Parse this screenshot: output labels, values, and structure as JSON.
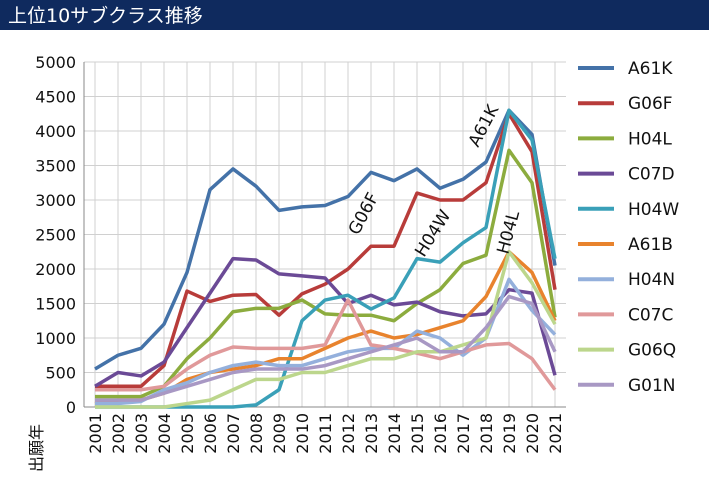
{
  "chart_data": {
    "type": "line",
    "title": "上位10サブクラス推移",
    "x_label": "出願年",
    "categories": [
      "2001",
      "2002",
      "2003",
      "2004",
      "2005",
      "2006",
      "2007",
      "2008",
      "2009",
      "2010",
      "2011",
      "2012",
      "2013",
      "2014",
      "2015",
      "2016",
      "2017",
      "2018",
      "2019",
      "2020",
      "2021"
    ],
    "ylim": [
      0,
      5000
    ],
    "yticks": [
      0,
      500,
      1000,
      1500,
      2000,
      2500,
      3000,
      3500,
      4000,
      4500,
      5000
    ],
    "grid": true,
    "legend": "right",
    "annotations": [
      "A61K",
      "G06F",
      "H04W",
      "H04L"
    ],
    "series": [
      {
        "name": "A61K",
        "color": "#4472a8",
        "values": [
          550,
          750,
          850,
          1200,
          1950,
          3150,
          3450,
          3200,
          2850,
          2900,
          2920,
          3050,
          3400,
          3280,
          3450,
          3170,
          3300,
          3550,
          4300,
          3950,
          2050
        ]
      },
      {
        "name": "G06F",
        "color": "#b83c3a",
        "values": [
          300,
          300,
          300,
          600,
          1680,
          1530,
          1620,
          1630,
          1330,
          1640,
          1780,
          2000,
          2330,
          2330,
          3100,
          3000,
          3000,
          3250,
          4250,
          3700,
          1700
        ]
      },
      {
        "name": "H04L",
        "color": "#8cac3e",
        "values": [
          150,
          150,
          150,
          300,
          700,
          1000,
          1380,
          1430,
          1430,
          1550,
          1350,
          1330,
          1330,
          1250,
          1500,
          1700,
          2080,
          2200,
          3720,
          3250,
          1300
        ]
      },
      {
        "name": "C07D",
        "color": "#6b4a96",
        "values": [
          300,
          500,
          450,
          650,
          1150,
          1650,
          2150,
          2130,
          1930,
          1900,
          1870,
          1500,
          1620,
          1480,
          1520,
          1380,
          1320,
          1350,
          1700,
          1650,
          460
        ]
      },
      {
        "name": "H04W",
        "color": "#3aa0b8",
        "values": [
          0,
          0,
          0,
          0,
          0,
          0,
          0,
          30,
          250,
          1250,
          1550,
          1620,
          1420,
          1580,
          2150,
          2100,
          2380,
          2600,
          4300,
          3870,
          2150
        ]
      },
      {
        "name": "A61B",
        "color": "#e8832d",
        "values": [
          50,
          100,
          100,
          200,
          400,
          500,
          550,
          600,
          700,
          700,
          850,
          1000,
          1100,
          1000,
          1050,
          1150,
          1250,
          1600,
          2250,
          1950,
          1250
        ]
      },
      {
        "name": "H04N",
        "color": "#94b0dc",
        "values": [
          50,
          50,
          80,
          250,
          350,
          500,
          600,
          650,
          600,
          600,
          700,
          800,
          850,
          850,
          1100,
          1000,
          750,
          1000,
          1850,
          1400,
          1050
        ]
      },
      {
        "name": "C07C",
        "color": "#e0999a",
        "values": [
          250,
          250,
          250,
          300,
          550,
          750,
          870,
          850,
          850,
          850,
          900,
          1550,
          900,
          850,
          780,
          700,
          800,
          900,
          920,
          700,
          250
        ]
      },
      {
        "name": "G06Q",
        "color": "#bcd68c",
        "values": [
          0,
          0,
          0,
          0,
          50,
          100,
          250,
          400,
          400,
          500,
          500,
          600,
          700,
          700,
          800,
          800,
          900,
          1000,
          2250,
          1800,
          1200
        ]
      },
      {
        "name": "G01N",
        "color": "#a898c4",
        "values": [
          100,
          100,
          100,
          200,
          300,
          400,
          500,
          550,
          550,
          550,
          600,
          700,
          800,
          900,
          1000,
          800,
          800,
          1150,
          1600,
          1500,
          800
        ]
      }
    ]
  }
}
